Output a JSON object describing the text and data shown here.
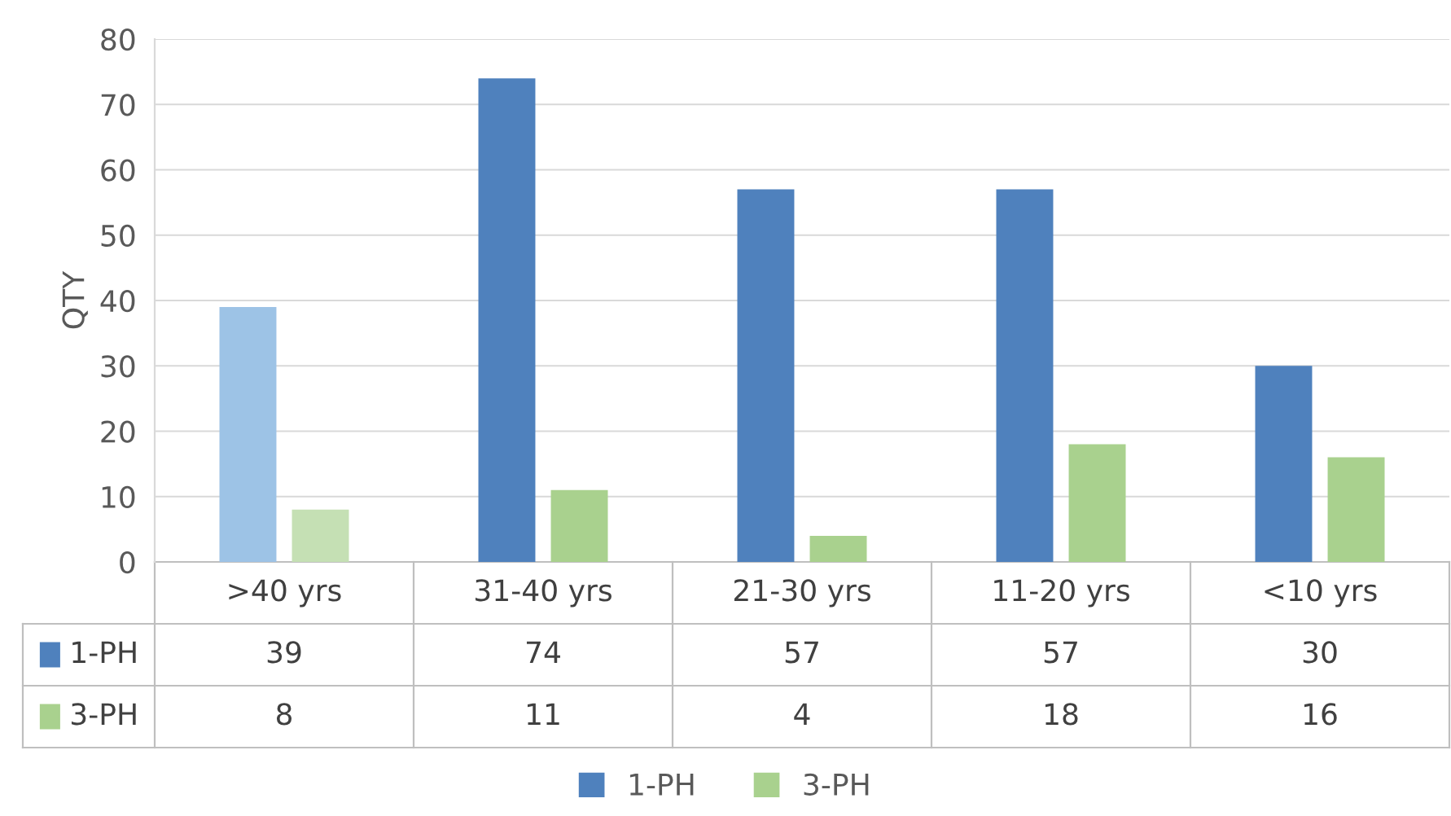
{
  "chart_data": {
    "type": "bar",
    "ylabel": "QTY",
    "categories": [
      ">40 yrs",
      "31-40 yrs",
      "21-30 yrs",
      "11-20 yrs",
      "<10 yrs"
    ],
    "series": [
      {
        "name": "1-PH",
        "color": "#4f81bd",
        "colors": [
          "#9dc3e6",
          "#4f81bd",
          "#4f81bd",
          "#4f81bd",
          "#4f81bd"
        ],
        "values": [
          39,
          74,
          57,
          57,
          30
        ]
      },
      {
        "name": "3-PH",
        "color": "#a9d18e",
        "colors": [
          "#c5e0b4",
          "#a9d18e",
          "#a9d18e",
          "#a9d18e",
          "#a9d18e"
        ],
        "values": [
          8,
          11,
          4,
          18,
          16
        ]
      }
    ],
    "ylim": [
      0,
      80
    ],
    "yticks": [
      0,
      10,
      20,
      30,
      40,
      50,
      60,
      70,
      80
    ],
    "grid": "y",
    "legend": "bottom",
    "data_labels": true
  }
}
